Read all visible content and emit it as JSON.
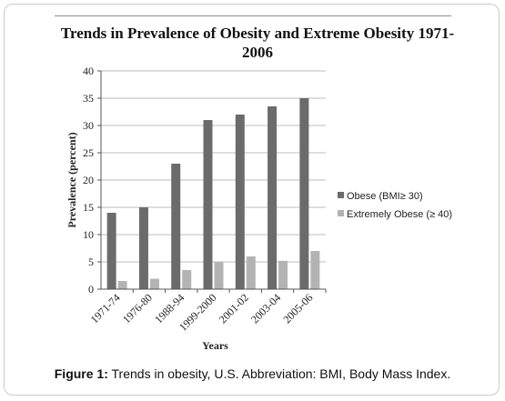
{
  "chart_data": {
    "type": "bar",
    "title": "Trends in Prevalence of Obesity and Extreme Obesity 1971-2006",
    "xlabel": "Years",
    "ylabel": "Prevalence (percent)",
    "ylim": [
      0,
      40
    ],
    "yticks": [
      0,
      5,
      10,
      15,
      20,
      25,
      30,
      35,
      40
    ],
    "grid": true,
    "legend_position": "right",
    "categories": [
      "1971-74",
      "1976-80",
      "1988-94",
      "1999-2000",
      "2001-02",
      "2003-04",
      "2005-06"
    ],
    "series": [
      {
        "name": "Obese (BMI≥ 30)",
        "values": [
          14,
          15,
          23,
          31,
          32,
          33.5,
          35
        ],
        "color": "#6b6b6b"
      },
      {
        "name": "Extremely Obese (≥ 40)",
        "values": [
          1.5,
          1.9,
          3.5,
          5,
          6,
          5.2,
          7
        ],
        "color": "#b3b3b3"
      }
    ]
  },
  "caption": {
    "label": "Figure 1:",
    "text": " Trends in obesity, U.S. Abbreviation: BMI, Body Mass Index."
  }
}
